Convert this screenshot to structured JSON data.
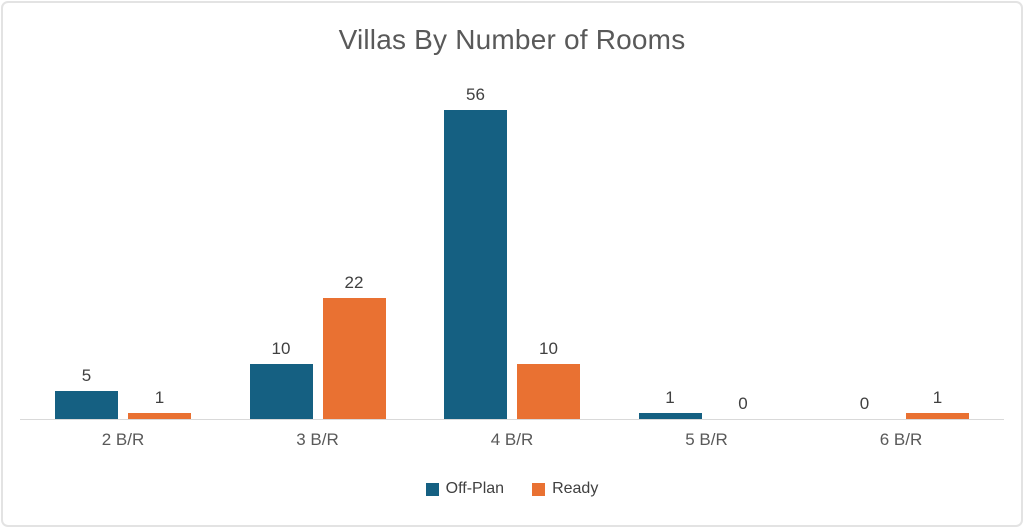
{
  "title": "Villas By Number of Rooms",
  "colors": {
    "off_plan": "#156082",
    "ready": "#E97132",
    "axis_line": "#d9d9d9",
    "title_text": "#595959",
    "value_label_text": "#404040",
    "category_text": "#595959",
    "frame_border": "#e3e3e3",
    "background": "#ffffff"
  },
  "legend": {
    "position": "bottom",
    "items": [
      {
        "label": "Off-Plan",
        "color": "#156082"
      },
      {
        "label": "Ready",
        "color": "#E97132"
      }
    ]
  },
  "chart_data": {
    "type": "bar",
    "title": "Villas By Number of Rooms",
    "categories": [
      "2 B/R",
      "3 B/R",
      "4 B/R",
      "5 B/R",
      "6 B/R"
    ],
    "series": [
      {
        "name": "Off-Plan",
        "color": "#156082",
        "values": [
          5,
          10,
          56,
          1,
          0
        ]
      },
      {
        "name": "Ready",
        "color": "#E97132",
        "values": [
          1,
          22,
          10,
          0,
          1
        ]
      }
    ],
    "xlabel": "",
    "ylabel": "",
    "ylim": [
      0,
      56
    ],
    "grid": false,
    "data_labels": true,
    "legend_position": "bottom"
  }
}
